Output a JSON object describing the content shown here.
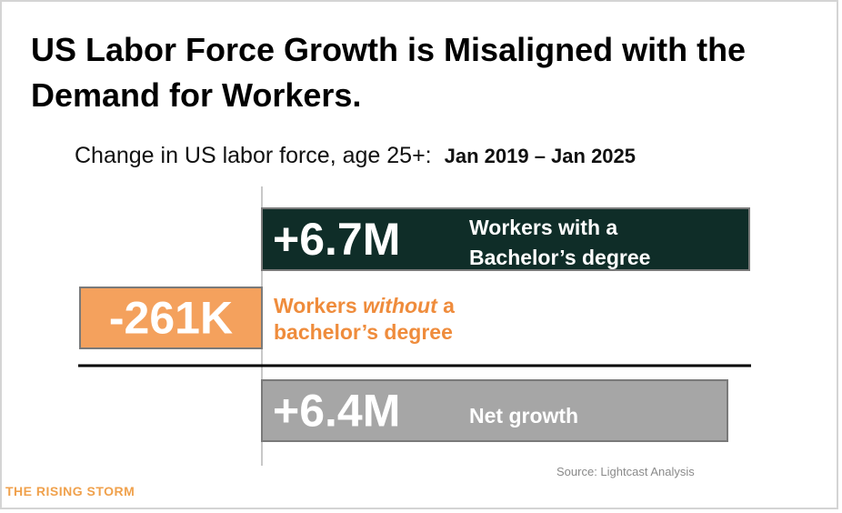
{
  "title": "US Labor Force Growth is Misaligned with the Demand for Workers.",
  "subtitle": "Change in US labor force, age 25+:",
  "date_range": "Jan 2019 – Jan 2025",
  "source": "Source: Lightcast Analysis",
  "brand": "THE RISING STORM",
  "colors": {
    "bachelor": "#0f2d28",
    "no_bachelor": "#f4a15d",
    "net": "#a6a6a6",
    "no_bachelor_text": "#ef8c3c"
  },
  "chart_data": {
    "type": "bar",
    "orientation": "horizontal",
    "categories": [
      "Workers with a Bachelor’s degree",
      "Workers without a bachelor’s degree",
      "Net growth"
    ],
    "values": [
      6700000,
      -261000,
      6400000
    ],
    "unit": "workers",
    "bars": [
      {
        "value": 6700000,
        "value_label": "+6.7M",
        "label_lines": [
          "Workers with a",
          "Bachelor’s degree"
        ],
        "color": "#0f2d28"
      },
      {
        "value": -261000,
        "value_label": "-261K",
        "label_lines": [
          "Workers without a",
          "bachelor’s degree"
        ],
        "emphasis_word": "without",
        "color": "#f4a15d"
      },
      {
        "value": 6400000,
        "value_label": "+6.4M",
        "label_lines": [
          "Net growth"
        ],
        "color": "#a6a6a6"
      }
    ]
  }
}
